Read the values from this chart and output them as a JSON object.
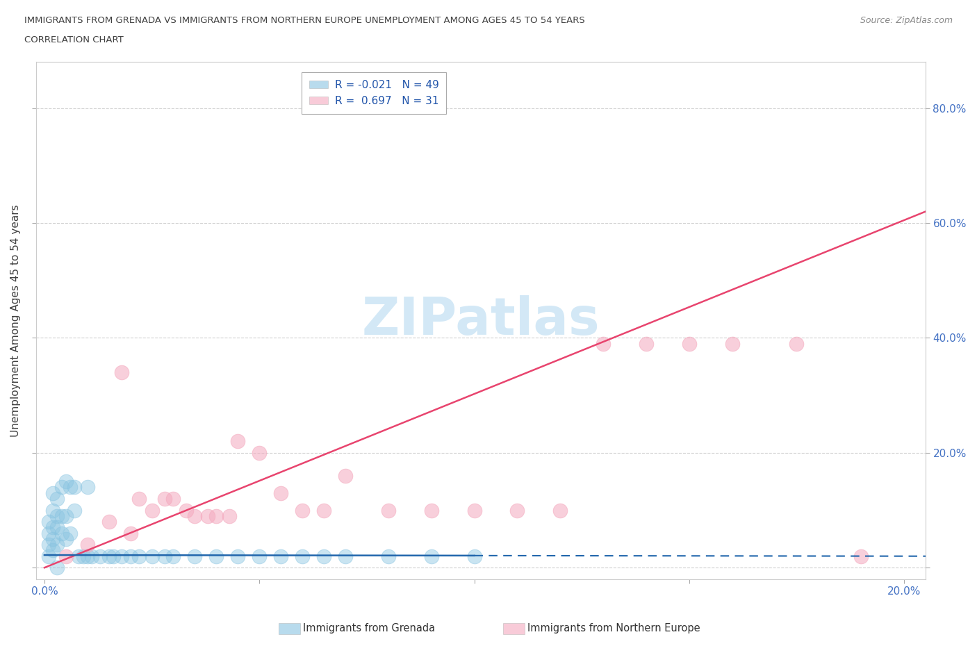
{
  "title_line1": "IMMIGRANTS FROM GRENADA VS IMMIGRANTS FROM NORTHERN EUROPE UNEMPLOYMENT AMONG AGES 45 TO 54 YEARS",
  "title_line2": "CORRELATION CHART",
  "source": "Source: ZipAtlas.com",
  "ylabel": "Unemployment Among Ages 45 to 54 years",
  "xlim": [
    -0.002,
    0.205
  ],
  "ylim": [
    -0.02,
    0.88
  ],
  "xticks": [
    0.0,
    0.05,
    0.1,
    0.15,
    0.2
  ],
  "yticks": [
    0.0,
    0.2,
    0.4,
    0.6,
    0.8
  ],
  "grenada_color": "#89c4e1",
  "northern_europe_color": "#f4a9be",
  "grenada_R": -0.021,
  "grenada_N": 49,
  "northern_europe_R": 0.697,
  "northern_europe_N": 31,
  "legend_label_grenada": "Immigrants from Grenada",
  "legend_label_northern_europe": "Immigrants from Northern Europe",
  "grenada_line_color": "#2166ac",
  "northern_europe_line_color": "#e8446e",
  "background_color": "#ffffff",
  "grid_color": "#d0d0d0",
  "tick_color": "#4472c4",
  "title_color": "#404040",
  "source_color": "#888888",
  "ylabel_color": "#404040",
  "watermark_color": "#cce5f5",
  "grenada_x": [
    0.001,
    0.001,
    0.001,
    0.001,
    0.002,
    0.002,
    0.002,
    0.002,
    0.002,
    0.003,
    0.003,
    0.003,
    0.003,
    0.004,
    0.004,
    0.004,
    0.005,
    0.005,
    0.005,
    0.006,
    0.006,
    0.007,
    0.007,
    0.008,
    0.009,
    0.01,
    0.01,
    0.011,
    0.013,
    0.015,
    0.016,
    0.018,
    0.02,
    0.022,
    0.025,
    0.028,
    0.03,
    0.035,
    0.04,
    0.045,
    0.05,
    0.055,
    0.06,
    0.065,
    0.07,
    0.08,
    0.09,
    0.1,
    0.003
  ],
  "grenada_y": [
    0.02,
    0.04,
    0.06,
    0.08,
    0.03,
    0.05,
    0.07,
    0.1,
    0.13,
    0.04,
    0.07,
    0.09,
    0.12,
    0.06,
    0.09,
    0.14,
    0.05,
    0.09,
    0.15,
    0.06,
    0.14,
    0.1,
    0.14,
    0.02,
    0.02,
    0.02,
    0.14,
    0.02,
    0.02,
    0.02,
    0.02,
    0.02,
    0.02,
    0.02,
    0.02,
    0.02,
    0.02,
    0.02,
    0.02,
    0.02,
    0.02,
    0.02,
    0.02,
    0.02,
    0.02,
    0.02,
    0.02,
    0.02,
    0.0
  ],
  "northern_europe_x": [
    0.005,
    0.01,
    0.015,
    0.018,
    0.02,
    0.022,
    0.025,
    0.028,
    0.03,
    0.033,
    0.035,
    0.038,
    0.04,
    0.043,
    0.045,
    0.05,
    0.055,
    0.06,
    0.065,
    0.07,
    0.08,
    0.09,
    0.1,
    0.11,
    0.12,
    0.13,
    0.14,
    0.15,
    0.16,
    0.175,
    0.19
  ],
  "northern_europe_y": [
    0.02,
    0.04,
    0.08,
    0.34,
    0.06,
    0.12,
    0.1,
    0.12,
    0.12,
    0.1,
    0.09,
    0.09,
    0.09,
    0.09,
    0.22,
    0.2,
    0.13,
    0.1,
    0.1,
    0.16,
    0.1,
    0.1,
    0.1,
    0.1,
    0.1,
    0.39,
    0.39,
    0.39,
    0.39,
    0.39,
    0.02
  ],
  "ne_line_x0": 0.0,
  "ne_line_y0": 0.0,
  "ne_line_x1": 0.205,
  "ne_line_y1": 0.62,
  "grenada_line_x0": 0.0,
  "grenada_line_y0": 0.022,
  "grenada_line_x1": 0.1,
  "grenada_line_x1_solid": 0.1,
  "grenada_line_x2": 0.205,
  "grenada_line_y1": 0.02
}
